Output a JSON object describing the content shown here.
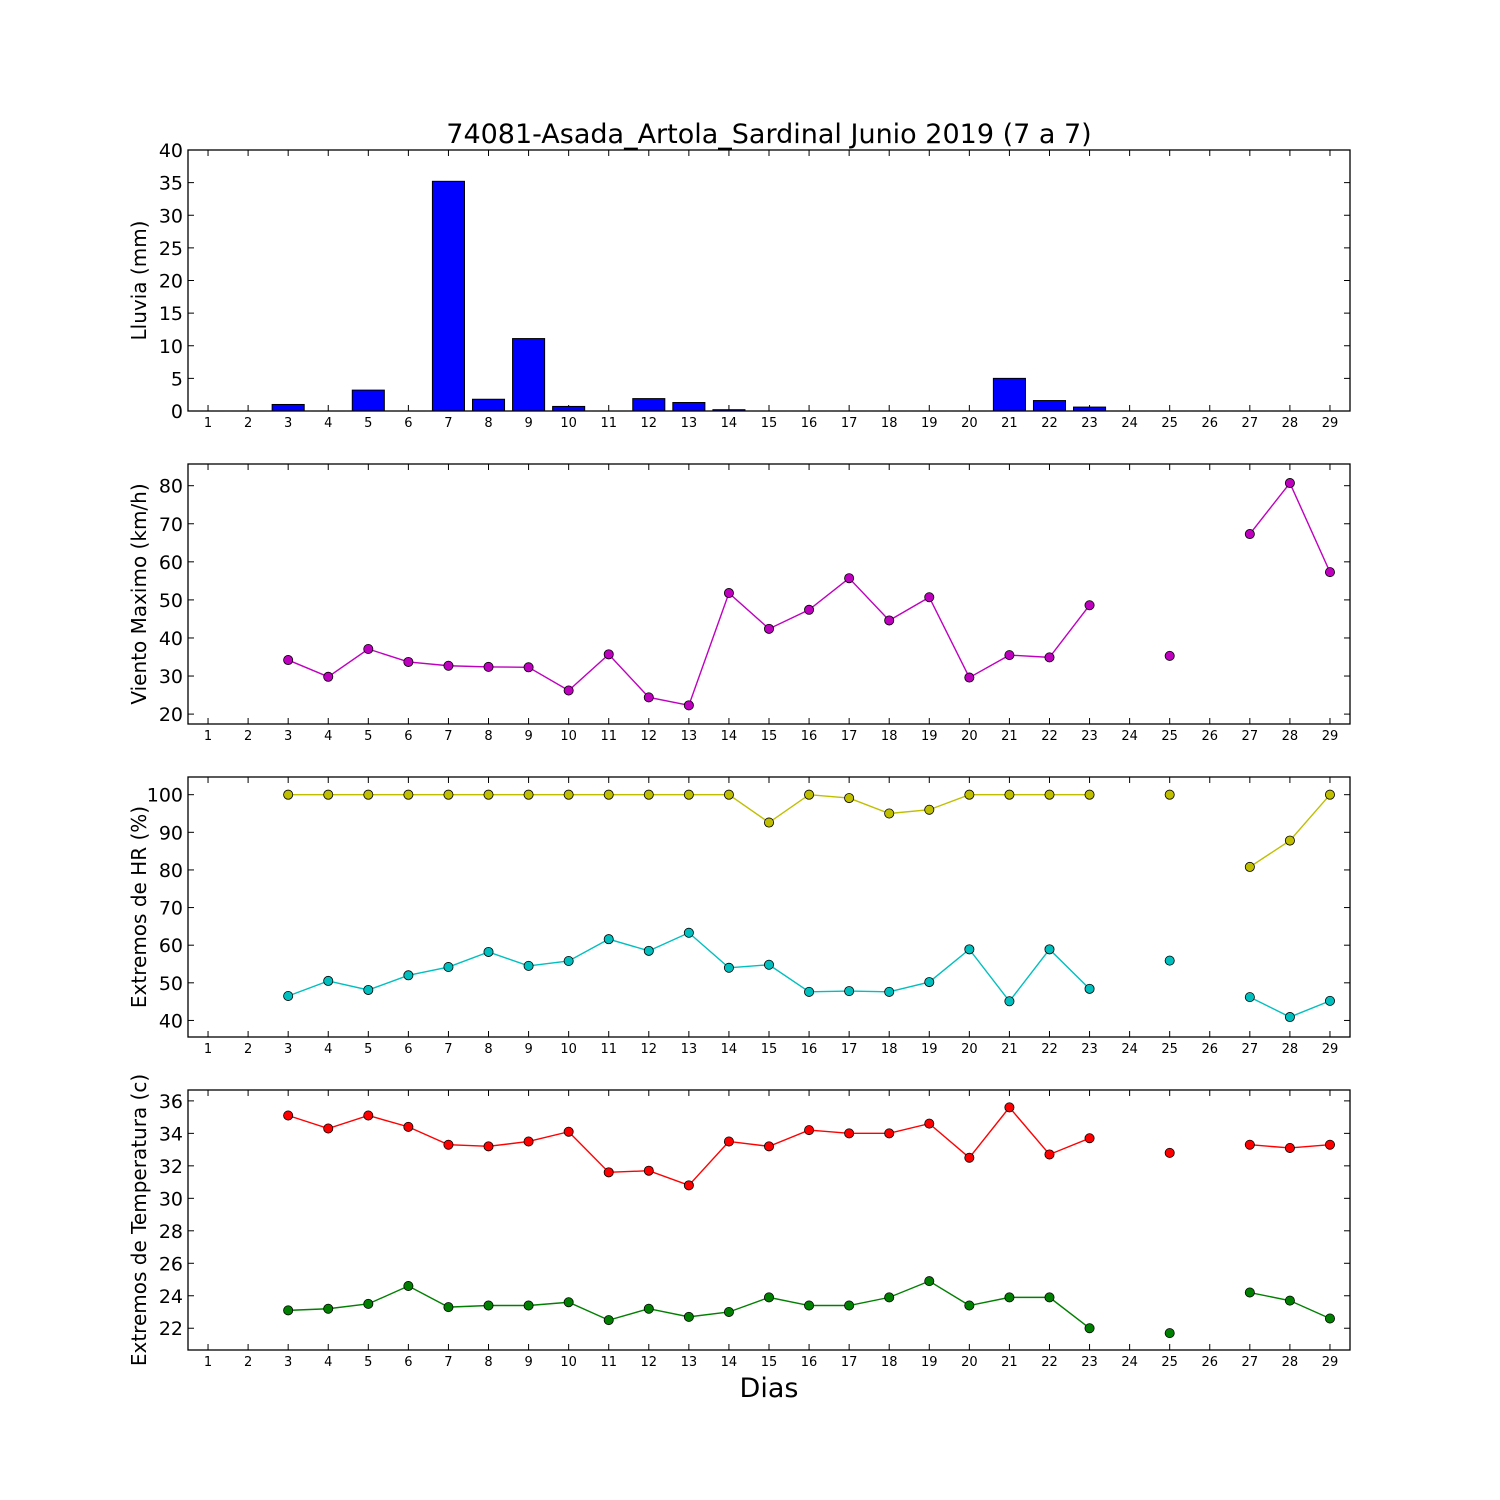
{
  "title": "74081-Asada_Artola_Sardinal Junio 2019  (7 a 7)",
  "xlabel": "Dias",
  "days": [
    1,
    2,
    3,
    4,
    5,
    6,
    7,
    8,
    9,
    10,
    11,
    12,
    13,
    14,
    15,
    16,
    17,
    18,
    19,
    20,
    21,
    22,
    23,
    24,
    25,
    26,
    27,
    28,
    29
  ],
  "chart_data": [
    {
      "type": "bar",
      "ylabel": "Lluvia (mm)",
      "ylim": [
        0,
        40
      ],
      "yticks": [
        0,
        5,
        10,
        15,
        20,
        25,
        30,
        35,
        40
      ],
      "series": [
        {
          "color": "#0000ff",
          "values": [
            0,
            0,
            1.0,
            0,
            3.2,
            0,
            35.2,
            1.8,
            11.1,
            0.7,
            0,
            1.9,
            1.3,
            0.2,
            0,
            0,
            0,
            0,
            0,
            0,
            5.0,
            1.6,
            0.6,
            0,
            0,
            0,
            0,
            0,
            0
          ]
        }
      ]
    },
    {
      "type": "line",
      "ylabel": "Viento Maximo (km/h)",
      "ylim": [
        17.4,
        85.7
      ],
      "yticks": [
        20,
        30,
        40,
        50,
        60,
        70,
        80
      ],
      "series": [
        {
          "color": "#bf00bf",
          "values": [
            null,
            null,
            34.2,
            29.8,
            37.1,
            33.7,
            32.7,
            32.4,
            32.3,
            26.2,
            35.7,
            24.4,
            22.3,
            51.8,
            42.4,
            47.4,
            55.7,
            44.6,
            50.7,
            29.6,
            35.5,
            34.9,
            48.6,
            null,
            35.3,
            null,
            67.3,
            80.7,
            57.3
          ]
        }
      ]
    },
    {
      "type": "line",
      "ylabel": "Extremos de HR (%)",
      "ylim": [
        35.6,
        104.7
      ],
      "yticks": [
        40,
        50,
        60,
        70,
        80,
        90,
        100
      ],
      "series": [
        {
          "color": "#bfbf00",
          "values": [
            null,
            null,
            100,
            100,
            100,
            100,
            100,
            100,
            100,
            100,
            100,
            100,
            100,
            100,
            92.6,
            100,
            99.1,
            95.0,
            96.0,
            100,
            100,
            100,
            100,
            null,
            100,
            null,
            80.8,
            87.8,
            100
          ]
        },
        {
          "color": "#00bfbf",
          "values": [
            null,
            null,
            46.5,
            50.5,
            48.1,
            52.0,
            54.2,
            58.2,
            54.5,
            55.8,
            61.6,
            58.5,
            63.3,
            54.0,
            54.8,
            47.6,
            47.8,
            47.6,
            50.2,
            58.9,
            45.1,
            58.9,
            48.4,
            null,
            55.9,
            null,
            46.2,
            40.9,
            45.2
          ]
        }
      ]
    },
    {
      "type": "line",
      "ylabel": "Extremos de Temperatura (c)",
      "ylim": [
        20.66,
        36.67
      ],
      "yticks": [
        22,
        24,
        26,
        28,
        30,
        32,
        34,
        36
      ],
      "series": [
        {
          "color": "#ff0000",
          "values": [
            null,
            null,
            35.1,
            34.3,
            35.1,
            34.4,
            33.3,
            33.2,
            33.5,
            34.1,
            31.6,
            31.7,
            30.8,
            33.5,
            33.2,
            34.2,
            34.0,
            34.0,
            34.6,
            32.5,
            35.6,
            32.7,
            33.7,
            null,
            32.8,
            null,
            33.3,
            33.1,
            33.3
          ]
        },
        {
          "color": "#008000",
          "values": [
            null,
            null,
            23.1,
            23.2,
            23.5,
            24.6,
            23.3,
            23.4,
            23.4,
            23.6,
            22.5,
            23.2,
            22.7,
            23.0,
            23.9,
            23.4,
            23.4,
            23.9,
            24.9,
            23.4,
            23.9,
            23.9,
            22.0,
            null,
            21.7,
            null,
            24.2,
            23.7,
            22.6
          ]
        }
      ]
    }
  ]
}
